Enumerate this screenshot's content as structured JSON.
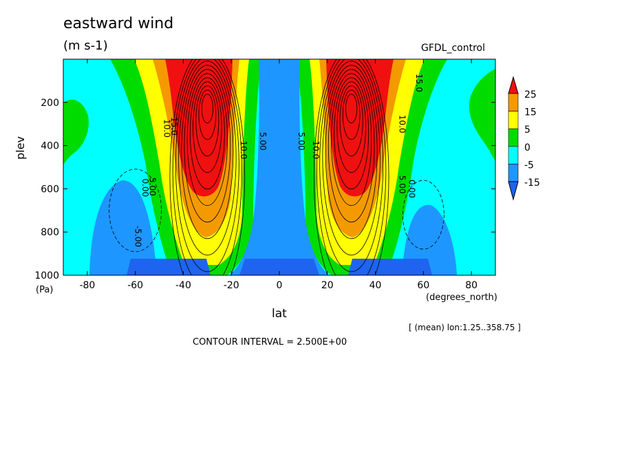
{
  "header": {
    "title": "eastward wind",
    "units": "(m s-1)",
    "dataset": "GFDL_control"
  },
  "footer": {
    "average_note": "[ (mean) lon:1.25..358.75 ]",
    "contour_interval": "CONTOUR INTERVAL = 2.500E+00"
  },
  "colors": {
    "red": "#f01010",
    "orange": "#f49a00",
    "yellow": "#ffff00",
    "green": "#00dc00",
    "cyan": "#00ffff",
    "blue": "#1e96ff",
    "deepblue": "#1e64f0"
  },
  "chart_data": {
    "type": "contour",
    "title": "eastward wind",
    "subtitle": "(m s-1)",
    "xlabel": "lat",
    "x_units": "(degrees_north)",
    "ylabel": "plev",
    "y_units": "(Pa)",
    "xlim": [
      -90,
      90
    ],
    "ylim": [
      1000,
      0
    ],
    "x_ticks": [
      -80,
      -60,
      -40,
      -20,
      0,
      20,
      40,
      60,
      80
    ],
    "y_ticks": [
      200,
      400,
      600,
      800,
      1000
    ],
    "colorbar_levels": [
      "25",
      "15",
      "5",
      "0",
      "-5",
      "-15"
    ],
    "jets": [
      {
        "lat": -30,
        "plev": 200,
        "max_ms": 30
      },
      {
        "lat": 30,
        "plev": 200,
        "max_ms": 30
      }
    ],
    "contour_labels": [
      {
        "text": "5.00",
        "lat": -54,
        "plev": 590
      },
      {
        "text": "0.00",
        "lat": -57,
        "plev": 595
      },
      {
        "text": "-5.00",
        "lat": -60,
        "plev": 820
      },
      {
        "text": "10.0",
        "lat": -48,
        "plev": 320
      },
      {
        "text": "15.0",
        "lat": -45,
        "plev": 310
      },
      {
        "text": "10.0",
        "lat": -16,
        "plev": 420
      },
      {
        "text": "5.00",
        "lat": -8,
        "plev": 380
      },
      {
        "text": "5.00",
        "lat": 8,
        "plev": 380
      },
      {
        "text": "10.0",
        "lat": 14,
        "plev": 420
      },
      {
        "text": "5.00",
        "lat": 50,
        "plev": 580
      },
      {
        "text": "0.00",
        "lat": 54,
        "plev": 600
      },
      {
        "text": "10.0",
        "lat": 50,
        "plev": 300
      },
      {
        "text": "15.0",
        "lat": 57,
        "plev": 110
      }
    ]
  }
}
